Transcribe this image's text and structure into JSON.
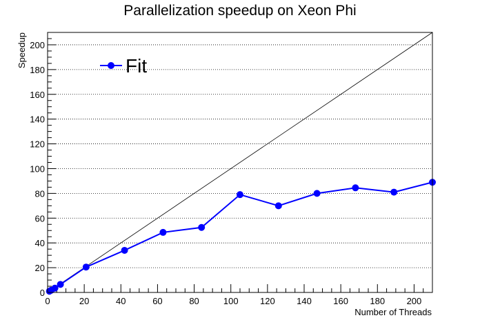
{
  "chart_data": {
    "type": "line",
    "title": "Parallelization speedup on Xeon Phi",
    "xlabel": "Number of Threads",
    "ylabel": "Speedup",
    "xlim": [
      0,
      210
    ],
    "ylim": [
      0,
      210
    ],
    "x_ticks": [
      0,
      20,
      40,
      60,
      80,
      100,
      120,
      140,
      160,
      180,
      200
    ],
    "y_ticks": [
      0,
      20,
      40,
      60,
      80,
      100,
      120,
      140,
      160,
      180,
      200
    ],
    "grid": {
      "horizontal": true,
      "vertical": false
    },
    "legend_position": "top-left",
    "series": [
      {
        "name": "Fit",
        "color": "#0000ff",
        "marker": "circle",
        "points": [
          {
            "x": 1,
            "y": 1
          },
          {
            "x": 2,
            "y": 1.8
          },
          {
            "x": 4,
            "y": 3.5
          },
          {
            "x": 7,
            "y": 6.5
          },
          {
            "x": 21,
            "y": 20.5
          },
          {
            "x": 42,
            "y": 34
          },
          {
            "x": 63,
            "y": 48.5
          },
          {
            "x": 84,
            "y": 52.5
          },
          {
            "x": 105,
            "y": 79
          },
          {
            "x": 126,
            "y": 70
          },
          {
            "x": 147,
            "y": 80
          },
          {
            "x": 168,
            "y": 84.5
          },
          {
            "x": 189,
            "y": 81
          },
          {
            "x": 210,
            "y": 89
          }
        ]
      }
    ],
    "reference_line": {
      "from": [
        0,
        0
      ],
      "to": [
        210,
        210
      ],
      "color": "#000000"
    }
  }
}
